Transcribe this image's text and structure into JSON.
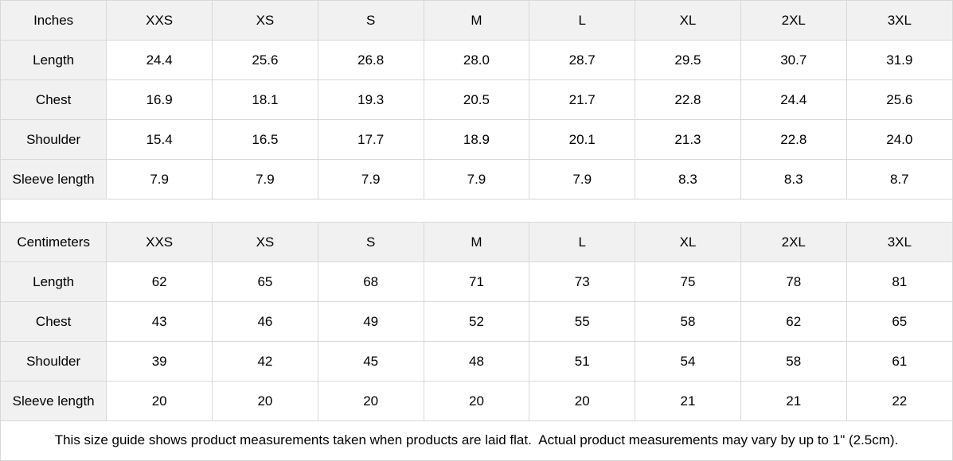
{
  "tables": [
    {
      "unit_label": "Inches",
      "sizes": [
        "XXS",
        "XS",
        "S",
        "M",
        "L",
        "XL",
        "2XL",
        "3XL"
      ],
      "rows": [
        {
          "label": "Length",
          "values": [
            "24.4",
            "25.6",
            "26.8",
            "28.0",
            "28.7",
            "29.5",
            "30.7",
            "31.9"
          ]
        },
        {
          "label": "Chest",
          "values": [
            "16.9",
            "18.1",
            "19.3",
            "20.5",
            "21.7",
            "22.8",
            "24.4",
            "25.6"
          ]
        },
        {
          "label": "Shoulder",
          "values": [
            "15.4",
            "16.5",
            "17.7",
            "18.9",
            "20.1",
            "21.3",
            "22.8",
            "24.0"
          ]
        },
        {
          "label": "Sleeve length",
          "values": [
            "7.9",
            "7.9",
            "7.9",
            "7.9",
            "7.9",
            "8.3",
            "8.3",
            "8.7"
          ]
        }
      ]
    },
    {
      "unit_label": "Centimeters",
      "sizes": [
        "XXS",
        "XS",
        "S",
        "M",
        "L",
        "XL",
        "2XL",
        "3XL"
      ],
      "rows": [
        {
          "label": "Length",
          "values": [
            "62",
            "65",
            "68",
            "71",
            "73",
            "75",
            "78",
            "81"
          ]
        },
        {
          "label": "Chest",
          "values": [
            "43",
            "46",
            "49",
            "52",
            "55",
            "58",
            "62",
            "65"
          ]
        },
        {
          "label": "Shoulder",
          "values": [
            "39",
            "42",
            "45",
            "48",
            "51",
            "54",
            "58",
            "61"
          ]
        },
        {
          "label": "Sleeve length",
          "values": [
            "20",
            "20",
            "20",
            "20",
            "20",
            "21",
            "21",
            "22"
          ]
        }
      ]
    }
  ],
  "footer_note": "This size guide shows product measurements taken when products are laid flat.  Actual product measurements may vary by up to 1\" (2.5cm).",
  "colors": {
    "header_bg": "#f1f1f1",
    "border": "#d8d8d8",
    "text": "#000000"
  }
}
